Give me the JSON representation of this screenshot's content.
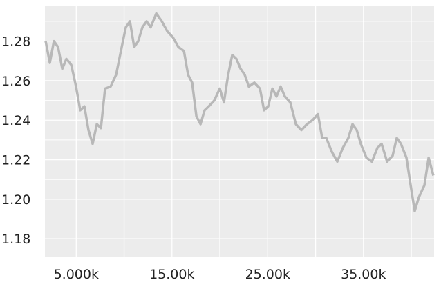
{
  "chart_data": {
    "type": "line",
    "x": [
      1800,
      2240,
      2670,
      3100,
      3540,
      3970,
      4480,
      4980,
      5420,
      5850,
      6280,
      6710,
      7150,
      7580,
      8010,
      8590,
      9170,
      9750,
      10180,
      10610,
      11050,
      11480,
      11910,
      12350,
      12780,
      13360,
      13940,
      14510,
      15090,
      15670,
      16250,
      16680,
      17110,
      17550,
      17980,
      18410,
      18840,
      19420,
      20000,
      20430,
      20870,
      21300,
      21730,
      22170,
      22600,
      23030,
      23610,
      24190,
      24620,
      25050,
      25490,
      25920,
      26350,
      26790,
      27360,
      27940,
      28520,
      29100,
      29680,
      30250,
      30690,
      31120,
      31700,
      32270,
      32850,
      33430,
      33860,
      34300,
      34730,
      35310,
      35890,
      36460,
      36900,
      37470,
      38050,
      38480,
      38920,
      39490,
      39930,
      40360,
      40790,
      41370,
      41810,
      42300
    ],
    "values": [
      1.28,
      1.269,
      1.28,
      1.277,
      1.266,
      1.271,
      1.268,
      1.257,
      1.245,
      1.247,
      1.235,
      1.228,
      1.238,
      1.236,
      1.256,
      1.257,
      1.263,
      1.277,
      1.287,
      1.29,
      1.277,
      1.28,
      1.287,
      1.29,
      1.287,
      1.294,
      1.29,
      1.285,
      1.282,
      1.277,
      1.275,
      1.263,
      1.259,
      1.242,
      1.238,
      1.245,
      1.247,
      1.25,
      1.256,
      1.249,
      1.263,
      1.273,
      1.271,
      1.266,
      1.263,
      1.257,
      1.259,
      1.256,
      1.245,
      1.247,
      1.256,
      1.252,
      1.257,
      1.252,
      1.249,
      1.238,
      1.235,
      1.238,
      1.24,
      1.243,
      1.231,
      1.231,
      1.224,
      1.219,
      1.226,
      1.231,
      1.238,
      1.235,
      1.228,
      1.221,
      1.219,
      1.226,
      1.228,
      1.219,
      1.222,
      1.231,
      1.228,
      1.221,
      1.207,
      1.194,
      1.201,
      1.207,
      1.221,
      1.212
    ],
    "color": "#b8b8b8",
    "xlim": [
      1730,
      42380
    ],
    "ylim": [
      1.171,
      1.298
    ],
    "xticks": [
      {
        "value": 5000,
        "label": "5.000k"
      },
      {
        "value": 15000,
        "label": "15.00k"
      },
      {
        "value": 25000,
        "label": "25.00k"
      },
      {
        "value": 35000,
        "label": "35.00k"
      }
    ],
    "xminor": [
      10000,
      20000,
      30000,
      40000
    ],
    "yticks": [
      1.18,
      {
        "value": 1.2,
        "label": "1.20"
      },
      1.22,
      1.24,
      1.26,
      1.28
    ],
    "yminor": [
      1.17,
      1.19,
      1.21,
      1.23,
      1.25,
      1.27,
      1.29
    ],
    "grid": true,
    "background": "#ececec"
  }
}
